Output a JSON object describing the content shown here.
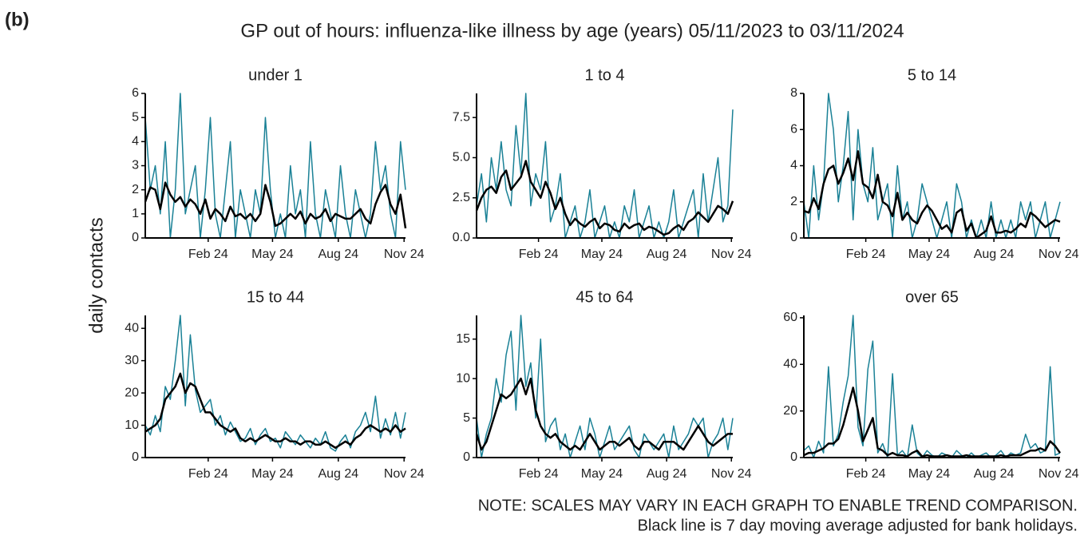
{
  "panel_label": "(b)",
  "title": "GP out of hours: influenza-like illness by age (years) 05/11/2023 to 03/11/2024",
  "ylabel": "daily contacts",
  "notes": [
    "NOTE: SCALES MAY VARY IN EACH GRAPH TO ENABLE TREND COMPARISON.",
    "Black line is 7 day moving average adjusted for bank holidays."
  ],
  "chart_data": [
    {
      "type": "line",
      "title": "under 1",
      "x": [
        0,
        7,
        14,
        21,
        28,
        35,
        42,
        49,
        56,
        63,
        70,
        77,
        84,
        91,
        98,
        105,
        112,
        119,
        126,
        133,
        140,
        147,
        154,
        161,
        168,
        175,
        182,
        189,
        196,
        203,
        210,
        217,
        224,
        231,
        238,
        245,
        252,
        259,
        266,
        273,
        280,
        287,
        294,
        301,
        308,
        315,
        322,
        329,
        336,
        343,
        350,
        357,
        364
      ],
      "xlim": [
        0,
        364
      ],
      "xticks": [
        {
          "value": 88,
          "label": "Feb 24"
        },
        {
          "value": 178,
          "label": "May 24"
        },
        {
          "value": 270,
          "label": "Aug 24"
        },
        {
          "value": 362,
          "label": "Nov 24"
        }
      ],
      "ylim": [
        0,
        6
      ],
      "yticks": [
        0,
        1,
        2,
        3,
        4,
        5,
        6
      ],
      "series": [
        {
          "color": "#1a8196",
          "values": [
            5,
            2,
            3,
            1,
            4,
            0,
            2,
            6,
            1,
            2,
            3,
            0,
            2,
            5,
            1,
            0,
            2,
            4,
            0,
            2,
            1,
            0,
            2,
            1,
            5,
            2,
            0,
            1,
            0,
            3,
            1,
            2,
            0,
            4,
            1,
            0,
            2,
            1,
            0,
            3,
            1,
            0,
            2,
            1,
            0,
            1,
            4,
            2,
            3,
            1,
            0,
            4,
            2
          ]
        },
        {
          "color": "#000000",
          "values": [
            1.5,
            2.1,
            2.0,
            1.2,
            2.3,
            1.8,
            1.5,
            1.7,
            1.3,
            1.6,
            1.4,
            1.0,
            1.6,
            0.8,
            1.2,
            1.0,
            0.7,
            1.3,
            0.9,
            1.0,
            0.8,
            1.0,
            0.7,
            1.0,
            2.2,
            1.5,
            0.5,
            0.6,
            0.8,
            1.0,
            0.8,
            1.1,
            0.6,
            1.0,
            0.8,
            0.9,
            1.2,
            0.7,
            1.0,
            0.9,
            0.8,
            0.8,
            1.0,
            1.2,
            0.8,
            0.6,
            1.4,
            1.9,
            2.2,
            1.4,
            1.0,
            1.8,
            0.4
          ]
        }
      ]
    },
    {
      "type": "line",
      "title": "1 to 4",
      "x": [
        0,
        7,
        14,
        21,
        28,
        35,
        42,
        49,
        56,
        63,
        70,
        77,
        84,
        91,
        98,
        105,
        112,
        119,
        126,
        133,
        140,
        147,
        154,
        161,
        168,
        175,
        182,
        189,
        196,
        203,
        210,
        217,
        224,
        231,
        238,
        245,
        252,
        259,
        266,
        273,
        280,
        287,
        294,
        301,
        308,
        315,
        322,
        329,
        336,
        343,
        350,
        357,
        364
      ],
      "xlim": [
        0,
        364
      ],
      "xticks": [
        {
          "value": 88,
          "label": "Feb 24"
        },
        {
          "value": 178,
          "label": "May 24"
        },
        {
          "value": 270,
          "label": "Aug 24"
        },
        {
          "value": 362,
          "label": "Nov 24"
        }
      ],
      "ylim": [
        0,
        9
      ],
      "yticks": [
        {
          "value": 0,
          "label": "0.0"
        },
        {
          "value": 2.5,
          "label": "2.5"
        },
        {
          "value": 5,
          "label": "5.0"
        },
        {
          "value": 7.5,
          "label": "7.5"
        }
      ],
      "series": [
        {
          "color": "#1a8196",
          "values": [
            2,
            4,
            1,
            5,
            3,
            6,
            3,
            2,
            7,
            4,
            9,
            2,
            4,
            3,
            6,
            1,
            2,
            4,
            0,
            1,
            2,
            0,
            1,
            3,
            0,
            1,
            2,
            0,
            1,
            0,
            2,
            1,
            3,
            0,
            1,
            2,
            0,
            1,
            0,
            1,
            3,
            0,
            1,
            2,
            3,
            0,
            4,
            1,
            3,
            5,
            1,
            2,
            8
          ]
        },
        {
          "color": "#000000",
          "values": [
            1.7,
            2.5,
            3.0,
            3.2,
            2.8,
            3.8,
            4.2,
            3.0,
            3.4,
            3.8,
            4.8,
            3.5,
            3.0,
            2.5,
            3.5,
            2.8,
            1.8,
            2.5,
            1.5,
            0.8,
            1.2,
            0.9,
            0.7,
            1.0,
            1.2,
            0.6,
            0.9,
            0.8,
            0.5,
            0.4,
            0.9,
            0.6,
            0.8,
            0.9,
            0.5,
            0.7,
            0.6,
            0.4,
            0.2,
            0.3,
            0.6,
            0.8,
            0.5,
            1.0,
            1.2,
            1.6,
            1.3,
            1.0,
            1.5,
            2.0,
            1.8,
            1.5,
            2.3
          ]
        }
      ]
    },
    {
      "type": "line",
      "title": "5 to 14",
      "x": [
        0,
        7,
        14,
        21,
        28,
        35,
        42,
        49,
        56,
        63,
        70,
        77,
        84,
        91,
        98,
        105,
        112,
        119,
        126,
        133,
        140,
        147,
        154,
        161,
        168,
        175,
        182,
        189,
        196,
        203,
        210,
        217,
        224,
        231,
        238,
        245,
        252,
        259,
        266,
        273,
        280,
        287,
        294,
        301,
        308,
        315,
        322,
        329,
        336,
        343,
        350,
        357,
        364
      ],
      "xlim": [
        0,
        364
      ],
      "xticks": [
        {
          "value": 88,
          "label": "Feb 24"
        },
        {
          "value": 178,
          "label": "May 24"
        },
        {
          "value": 270,
          "label": "Aug 24"
        },
        {
          "value": 362,
          "label": "Nov 24"
        }
      ],
      "ylim": [
        0,
        8
      ],
      "yticks": [
        0,
        2,
        4,
        6,
        8
      ],
      "series": [
        {
          "color": "#1a8196",
          "values": [
            2,
            0,
            4,
            1,
            3,
            8,
            6,
            2,
            4,
            7,
            1,
            6,
            3,
            2,
            5,
            1,
            2,
            3,
            0,
            4,
            1,
            2,
            0,
            1,
            3,
            2,
            1,
            0,
            1,
            2,
            0,
            3,
            2,
            0,
            1,
            0,
            1,
            0,
            2,
            0,
            1,
            0,
            1,
            0,
            2,
            1,
            2,
            0,
            1,
            2,
            0,
            1,
            2
          ]
        },
        {
          "color": "#000000",
          "values": [
            1.5,
            1.4,
            2.2,
            1.6,
            3.0,
            3.8,
            4.0,
            3.0,
            3.6,
            4.4,
            3.2,
            4.8,
            3.0,
            2.8,
            2.2,
            3.5,
            2.0,
            1.8,
            1.2,
            2.5,
            1.0,
            1.4,
            1.0,
            0.8,
            1.4,
            1.8,
            1.5,
            1.0,
            0.5,
            0.7,
            0.3,
            1.4,
            1.6,
            0.4,
            0.8,
            0.0,
            0.2,
            0.4,
            1.2,
            0.3,
            0.3,
            0.4,
            0.3,
            0.5,
            0.8,
            0.6,
            1.4,
            1.2,
            0.9,
            0.6,
            0.8,
            1.0,
            0.9
          ]
        }
      ]
    },
    {
      "type": "line",
      "title": "15 to 44",
      "x": [
        0,
        7,
        14,
        21,
        28,
        35,
        42,
        49,
        56,
        63,
        70,
        77,
        84,
        91,
        98,
        105,
        112,
        119,
        126,
        133,
        140,
        147,
        154,
        161,
        168,
        175,
        182,
        189,
        196,
        203,
        210,
        217,
        224,
        231,
        238,
        245,
        252,
        259,
        266,
        273,
        280,
        287,
        294,
        301,
        308,
        315,
        322,
        329,
        336,
        343,
        350,
        357,
        364
      ],
      "xlim": [
        0,
        364
      ],
      "xticks": [
        {
          "value": 88,
          "label": "Feb 24"
        },
        {
          "value": 178,
          "label": "May 24"
        },
        {
          "value": 270,
          "label": "Aug 24"
        },
        {
          "value": 362,
          "label": "Nov 24"
        }
      ],
      "ylim": [
        0,
        44
      ],
      "yticks": [
        0,
        10,
        20,
        30,
        40
      ],
      "series": [
        {
          "color": "#1a8196",
          "values": [
            10,
            7,
            13,
            8,
            22,
            18,
            30,
            44,
            16,
            38,
            21,
            14,
            16,
            18,
            10,
            13,
            7,
            11,
            8,
            5,
            6,
            9,
            4,
            7,
            9,
            5,
            6,
            3,
            8,
            6,
            4,
            7,
            5,
            3,
            6,
            4,
            8,
            3,
            2,
            5,
            7,
            3,
            8,
            10,
            14,
            8,
            19,
            6,
            12,
            7,
            14,
            6,
            14
          ]
        },
        {
          "color": "#000000",
          "values": [
            8,
            9,
            10,
            12,
            18,
            20,
            22,
            26,
            20,
            23,
            22,
            18,
            14,
            14,
            12,
            10,
            9,
            8,
            9,
            6,
            5,
            6,
            5,
            6,
            7,
            6,
            5,
            5,
            6,
            5,
            5,
            4,
            5,
            5,
            4,
            4,
            5,
            4,
            3,
            4,
            5,
            4,
            6,
            7,
            9,
            10,
            9,
            8,
            9,
            8,
            10,
            8,
            9
          ]
        }
      ]
    },
    {
      "type": "line",
      "title": "45 to 64",
      "x": [
        0,
        7,
        14,
        21,
        28,
        35,
        42,
        49,
        56,
        63,
        70,
        77,
        84,
        91,
        98,
        105,
        112,
        119,
        126,
        133,
        140,
        147,
        154,
        161,
        168,
        175,
        182,
        189,
        196,
        203,
        210,
        217,
        224,
        231,
        238,
        245,
        252,
        259,
        266,
        273,
        280,
        287,
        294,
        301,
        308,
        315,
        322,
        329,
        336,
        343,
        350,
        357,
        364
      ],
      "xlim": [
        0,
        364
      ],
      "xticks": [
        {
          "value": 88,
          "label": "Feb 24"
        },
        {
          "value": 178,
          "label": "May 24"
        },
        {
          "value": 270,
          "label": "Aug 24"
        },
        {
          "value": 362,
          "label": "Nov 24"
        }
      ],
      "ylim": [
        0,
        18
      ],
      "yticks": [
        0,
        5,
        10,
        15
      ],
      "series": [
        {
          "color": "#1a8196",
          "values": [
            5,
            0,
            3,
            5,
            10,
            7,
            13,
            16,
            6,
            18,
            9,
            12,
            5,
            15,
            2,
            4,
            5,
            1,
            3,
            0,
            2,
            4,
            1,
            5,
            3,
            0,
            2,
            4,
            1,
            2,
            3,
            4,
            1,
            0,
            3,
            2,
            1,
            2,
            3,
            0,
            4,
            1,
            2,
            3,
            5,
            4,
            5,
            0,
            2,
            3,
            5,
            1,
            5
          ]
        },
        {
          "color": "#000000",
          "values": [
            3,
            1,
            2,
            4,
            6,
            8,
            7.5,
            8,
            9,
            10,
            8,
            10,
            6,
            4,
            3,
            2.5,
            3,
            2,
            1.5,
            1,
            1.5,
            1,
            2,
            3,
            2,
            1,
            1.5,
            2,
            2,
            1.5,
            2,
            2.5,
            1.5,
            1,
            2,
            2,
            1.5,
            1,
            2,
            2,
            2,
            1.5,
            1,
            2,
            3,
            4,
            3,
            2,
            1.5,
            2,
            2.5,
            3,
            3
          ]
        }
      ]
    },
    {
      "type": "line",
      "title": "over 65",
      "x": [
        0,
        7,
        14,
        21,
        28,
        35,
        42,
        49,
        56,
        63,
        70,
        77,
        84,
        91,
        98,
        105,
        112,
        119,
        126,
        133,
        140,
        147,
        154,
        161,
        168,
        175,
        182,
        189,
        196,
        203,
        210,
        217,
        224,
        231,
        238,
        245,
        252,
        259,
        266,
        273,
        280,
        287,
        294,
        301,
        308,
        315,
        322,
        329,
        336,
        343,
        350,
        357,
        364
      ],
      "xlim": [
        0,
        364
      ],
      "xticks": [
        {
          "value": 88,
          "label": "Feb 24"
        },
        {
          "value": 178,
          "label": "May 24"
        },
        {
          "value": 270,
          "label": "Aug 24"
        },
        {
          "value": 362,
          "label": "Nov 24"
        }
      ],
      "ylim": [
        0,
        61
      ],
      "yticks": [
        0,
        20,
        40,
        60
      ],
      "series": [
        {
          "color": "#1a8196",
          "values": [
            3,
            5,
            0,
            7,
            2,
            39,
            5,
            10,
            24,
            35,
            61,
            13,
            5,
            38,
            50,
            2,
            6,
            0,
            36,
            1,
            3,
            0,
            14,
            2,
            0,
            3,
            1,
            0,
            2,
            1,
            0,
            3,
            1,
            0,
            2,
            0,
            1,
            2,
            0,
            1,
            3,
            0,
            2,
            1,
            2,
            10,
            4,
            6,
            2,
            3,
            39,
            1,
            2
          ]
        },
        {
          "color": "#000000",
          "values": [
            1,
            2,
            2,
            3,
            4,
            6,
            6,
            8,
            14,
            22,
            30,
            20,
            7,
            12,
            17,
            4,
            3,
            1,
            2,
            1,
            1,
            0.5,
            2,
            3,
            0.5,
            1,
            0.5,
            0.5,
            0.5,
            1,
            0.5,
            0.5,
            0.5,
            1,
            0.5,
            0.5,
            0.5,
            0.5,
            0.5,
            0.5,
            1,
            0.5,
            1,
            1,
            1,
            2,
            3,
            3,
            4,
            3,
            7,
            5,
            2
          ]
        }
      ]
    }
  ]
}
